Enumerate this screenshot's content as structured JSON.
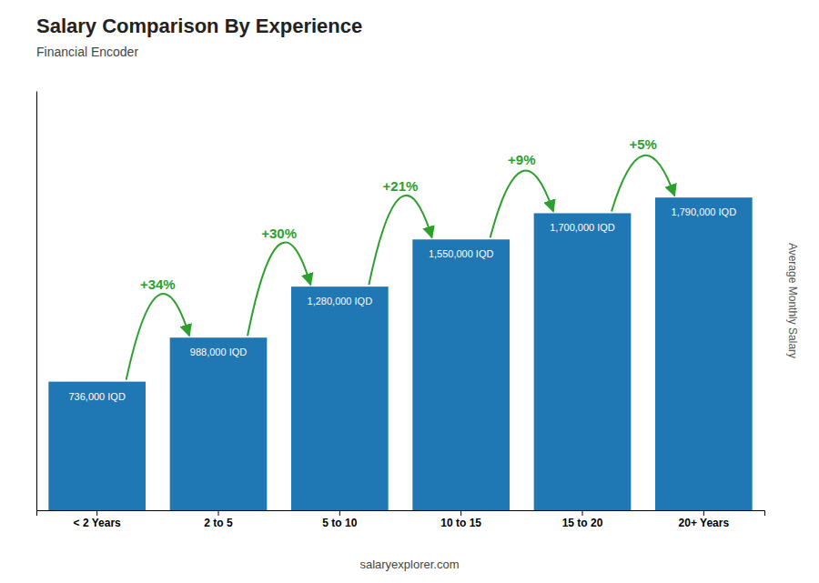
{
  "chart_data": {
    "type": "bar",
    "title": "Salary Comparison By Experience",
    "subtitle": "Financial Encoder",
    "categories": [
      "< 2 Years",
      "2 to 5",
      "5 to 10",
      "10 to 15",
      "15 to 20",
      "20+ Years"
    ],
    "values": [
      736000,
      988000,
      1280000,
      1550000,
      1700000,
      1790000
    ],
    "value_labels": [
      "736,000 IQD",
      "988,000 IQD",
      "1,280,000 IQD",
      "1,550,000 IQD",
      "1,700,000 IQD",
      "1,790,000 IQD"
    ],
    "data_labels": true,
    "annotations": [
      "+34%",
      "+30%",
      "+21%",
      "+9%",
      "+5%"
    ],
    "ylabel": "Average Monthly Salary",
    "footer": "salaryexplorer.com",
    "ylim": [
      0,
      2400000
    ],
    "tick_labels": "x"
  }
}
